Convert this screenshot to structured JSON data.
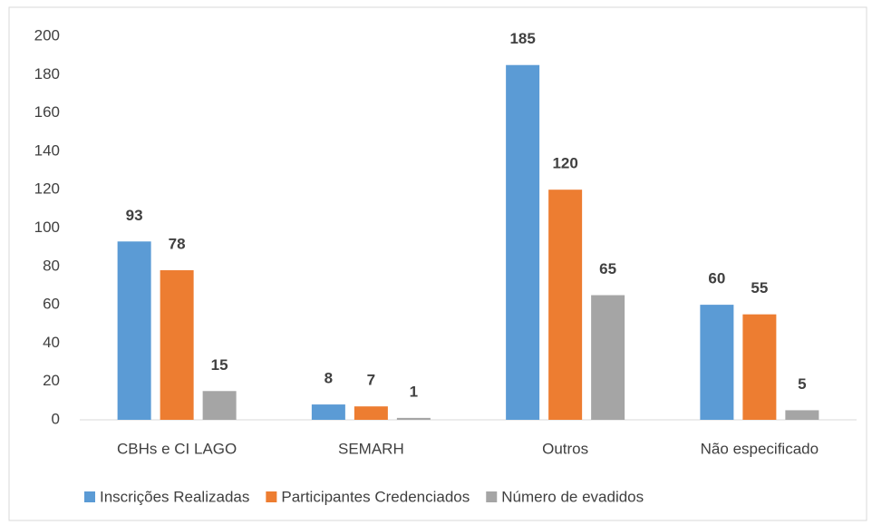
{
  "chart_data": {
    "type": "bar",
    "categories": [
      "CBHs e CI LAGO",
      "SEMARH",
      "Outros",
      "Não especificado"
    ],
    "series": [
      {
        "name": "Inscrições Realizadas",
        "color": "#5b9bd5",
        "values": [
          93,
          8,
          185,
          60
        ]
      },
      {
        "name": "Participantes Credenciados",
        "color": "#ed7d31",
        "values": [
          78,
          7,
          120,
          55
        ]
      },
      {
        "name": "Número de evadidos",
        "color": "#a5a5a5",
        "values": [
          15,
          1,
          65,
          5
        ]
      }
    ],
    "ylim": [
      0,
      200
    ],
    "yticks": [
      0,
      20,
      40,
      60,
      80,
      100,
      120,
      140,
      160,
      180,
      200
    ],
    "grid": false,
    "legend": "bottom"
  }
}
